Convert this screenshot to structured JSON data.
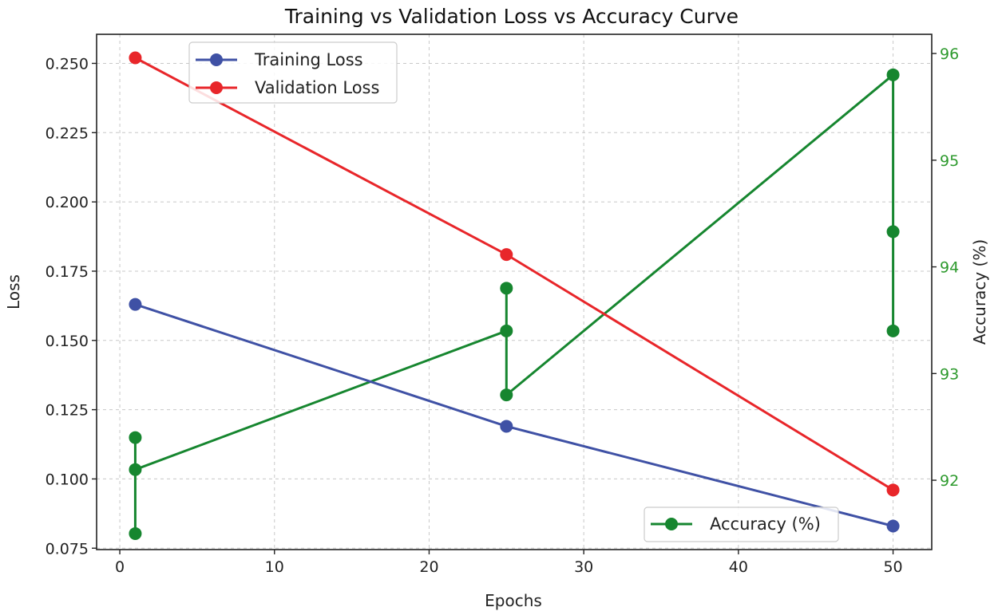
{
  "chart_data": {
    "type": "line",
    "title": "Training vs Validation Loss vs Accuracy Curve",
    "xlabel": "Epochs",
    "ylabel": "Loss",
    "y2label": "Accuracy (%)",
    "xlim": [
      -1.5,
      52.5
    ],
    "ylim": [
      0.0745,
      0.2605
    ],
    "y2lim": [
      91.35,
      96.18
    ],
    "xticks": [
      0,
      10,
      20,
      30,
      40,
      50
    ],
    "yticks": [
      "0.075",
      "0.100",
      "0.125",
      "0.150",
      "0.175",
      "0.200",
      "0.225",
      "0.250"
    ],
    "y2ticks": [
      92,
      93,
      94,
      95,
      96
    ],
    "grid": true,
    "series": [
      {
        "name": "Training Loss",
        "axis": "left",
        "color": "#3f51a5",
        "x": [
          1,
          25,
          50
        ],
        "y": [
          0.163,
          0.119,
          0.083
        ]
      },
      {
        "name": "Validation Loss",
        "axis": "left",
        "color": "#e8262a",
        "x": [
          1,
          25,
          50
        ],
        "y": [
          0.252,
          0.181,
          0.096
        ]
      },
      {
        "name": "Accuracy (%)",
        "axis": "right",
        "color": "#16862f",
        "x": [
          1,
          1,
          1,
          25,
          25,
          25,
          50,
          50,
          50
        ],
        "y": [
          91.5,
          92.4,
          92.1,
          93.4,
          93.8,
          92.8,
          95.8,
          94.33,
          93.4
        ]
      }
    ],
    "legend_left": {
      "position": "upper-left",
      "entries": [
        "Training Loss",
        "Validation Loss"
      ]
    },
    "legend_right": {
      "position": "lower-right",
      "entries": [
        "Accuracy (%)"
      ]
    },
    "tick_color_right": "#2e9a2e"
  }
}
